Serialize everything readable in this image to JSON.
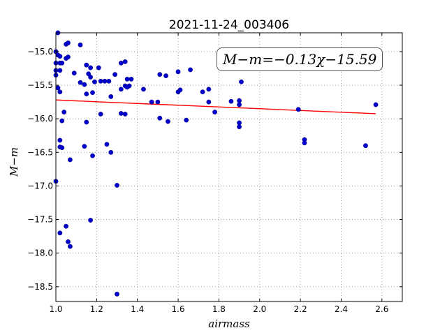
{
  "chart_data": {
    "type": "scatter",
    "title": "2021-11-24_003406",
    "xlabel": "airmass",
    "ylabel": "M−m",
    "annotation": "M−m=−0.13χ−15.59",
    "xlim": [
      1.0,
      2.7
    ],
    "ylim": [
      -18.72,
      -14.72
    ],
    "y_inverted": true,
    "grid": true,
    "x_ticks": [
      "1.0",
      "1.2",
      "1.4",
      "1.6",
      "1.8",
      "2.0",
      "2.2",
      "2.4",
      "2.6"
    ],
    "x_tick_values": [
      1.0,
      1.2,
      1.4,
      1.6,
      1.8,
      2.0,
      2.2,
      2.4,
      2.6
    ],
    "y_ticks": [
      "−15.0",
      "−15.5",
      "−16.0",
      "−16.5",
      "−17.0",
      "−17.5",
      "−18.0",
      "−18.5"
    ],
    "y_tick_values": [
      -15.0,
      -15.5,
      -16.0,
      -16.5,
      -17.0,
      -17.5,
      -18.0,
      -18.5
    ],
    "fit": {
      "slope": -0.13,
      "intercept": -15.59,
      "x_range": [
        1.0,
        2.57
      ],
      "color": "#ff0000"
    },
    "point_color": "#0000cc",
    "points": [
      [
        1.01,
        -14.72
      ],
      [
        1.0,
        -15.0
      ],
      [
        1.01,
        -15.05
      ],
      [
        1.02,
        -15.07
      ],
      [
        1.0,
        -15.17
      ],
      [
        1.02,
        -15.17
      ],
      [
        1.03,
        -15.17
      ],
      [
        1.0,
        -15.28
      ],
      [
        1.02,
        -15.28
      ],
      [
        1.0,
        -15.35
      ],
      [
        1.05,
        -15.1
      ],
      [
        1.06,
        -15.08
      ],
      [
        1.05,
        -14.89
      ],
      [
        1.06,
        -14.87
      ],
      [
        1.12,
        -14.9
      ],
      [
        1.01,
        -15.54
      ],
      [
        1.02,
        -15.6
      ],
      [
        1.04,
        -15.9
      ],
      [
        1.03,
        -16.03
      ],
      [
        1.02,
        -16.32
      ],
      [
        1.02,
        -16.42
      ],
      [
        1.03,
        -16.43
      ],
      [
        1.0,
        -16.93
      ],
      [
        1.07,
        -16.61
      ],
      [
        1.09,
        -15.32
      ],
      [
        1.12,
        -15.46
      ],
      [
        1.14,
        -15.49
      ],
      [
        1.15,
        -15.2
      ],
      [
        1.16,
        -15.33
      ],
      [
        1.17,
        -15.24
      ],
      [
        1.17,
        -15.38
      ],
      [
        1.19,
        -15.45
      ],
      [
        1.15,
        -15.63
      ],
      [
        1.18,
        -15.61
      ],
      [
        1.15,
        -16.05
      ],
      [
        1.14,
        -16.41
      ],
      [
        1.18,
        -16.55
      ],
      [
        1.17,
        -17.51
      ],
      [
        1.05,
        -17.6
      ],
      [
        1.02,
        -17.7
      ],
      [
        1.06,
        -17.83
      ],
      [
        1.07,
        -17.9
      ],
      [
        1.21,
        -15.24
      ],
      [
        1.22,
        -15.44
      ],
      [
        1.24,
        -15.44
      ],
      [
        1.26,
        -15.44
      ],
      [
        1.29,
        -15.34
      ],
      [
        1.27,
        -15.67
      ],
      [
        1.22,
        -15.93
      ],
      [
        1.25,
        -16.38
      ],
      [
        1.27,
        -16.5
      ],
      [
        1.3,
        -16.99
      ],
      [
        1.3,
        -18.61
      ],
      [
        1.32,
        -15.17
      ],
      [
        1.34,
        -15.15
      ],
      [
        1.32,
        -15.56
      ],
      [
        1.34,
        -15.51
      ],
      [
        1.35,
        -15.41
      ],
      [
        1.36,
        -15.51
      ],
      [
        1.37,
        -15.41
      ],
      [
        1.35,
        -15.53
      ],
      [
        1.32,
        -15.92
      ],
      [
        1.34,
        -15.93
      ],
      [
        1.43,
        -15.56
      ],
      [
        1.47,
        -15.75
      ],
      [
        1.5,
        -15.75
      ],
      [
        1.51,
        -15.34
      ],
      [
        1.54,
        -15.36
      ],
      [
        1.51,
        -15.99
      ],
      [
        1.55,
        -16.04
      ],
      [
        1.6,
        -15.3
      ],
      [
        1.6,
        -15.6
      ],
      [
        1.61,
        -15.57
      ],
      [
        1.66,
        -15.27
      ],
      [
        1.64,
        -16.02
      ],
      [
        1.72,
        -15.6
      ],
      [
        1.75,
        -15.56
      ],
      [
        1.75,
        -15.75
      ],
      [
        1.78,
        -15.9
      ],
      [
        1.86,
        -15.74
      ],
      [
        1.9,
        -15.79
      ],
      [
        1.9,
        -15.73
      ],
      [
        1.91,
        -15.45
      ],
      [
        1.9,
        -16.06
      ],
      [
        1.9,
        -16.12
      ],
      [
        2.19,
        -15.86
      ],
      [
        2.22,
        -16.31
      ],
      [
        2.22,
        -16.36
      ],
      [
        2.52,
        -16.4
      ],
      [
        2.57,
        -15.79
      ]
    ]
  }
}
